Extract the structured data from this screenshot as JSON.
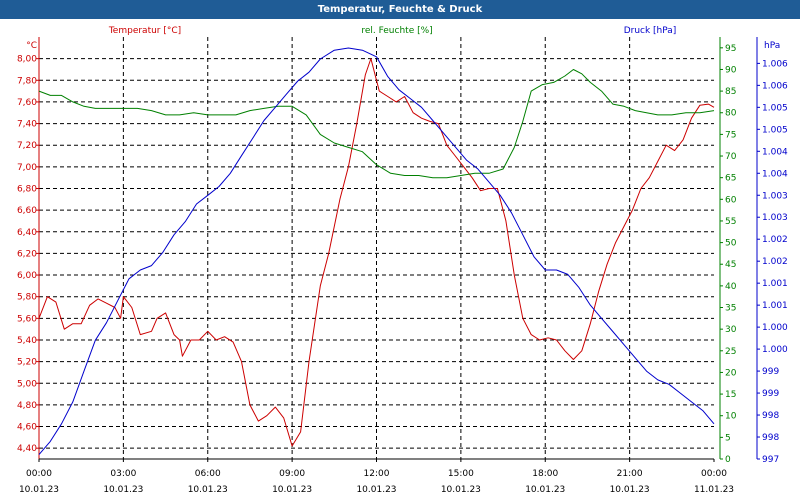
{
  "window": {
    "title": "Temperatur, Feuchte & Druck"
  },
  "colors": {
    "temperature": "#cc0000",
    "humidity": "#008000",
    "pressure": "#0000cc",
    "titlebar": "#1f5c96"
  },
  "chart_data": {
    "type": "line",
    "title": "Temperatur, Feuchte & Druck",
    "grid": true,
    "x": {
      "range": [
        0,
        24
      ],
      "ticks": [
        {
          "v": 0,
          "time": "00:00",
          "date": "10.01.23"
        },
        {
          "v": 3,
          "time": "03:00",
          "date": "10.01.23"
        },
        {
          "v": 6,
          "time": "06:00",
          "date": "10.01.23"
        },
        {
          "v": 9,
          "time": "09:00",
          "date": "10.01.23"
        },
        {
          "v": 12,
          "time": "12:00",
          "date": "10.01.23"
        },
        {
          "v": 15,
          "time": "15:00",
          "date": "10.01.23"
        },
        {
          "v": 18,
          "time": "18:00",
          "date": "10.01.23"
        },
        {
          "v": 21,
          "time": "21:00",
          "date": "10.01.23"
        },
        {
          "v": 24,
          "time": "00:00",
          "date": "11.01.23"
        }
      ]
    },
    "axes": {
      "temperature": {
        "unit": "°C",
        "legend": "Temperatur [°C]",
        "range": [
          4.3,
          8.2
        ],
        "ticks": [
          {
            "v": 4.4,
            "label": "4,40"
          },
          {
            "v": 4.6,
            "label": "4,60"
          },
          {
            "v": 4.8,
            "label": "4,80"
          },
          {
            "v": 5.0,
            "label": "5,00"
          },
          {
            "v": 5.2,
            "label": "5,20"
          },
          {
            "v": 5.4,
            "label": "5,40"
          },
          {
            "v": 5.6,
            "label": "5,60"
          },
          {
            "v": 5.8,
            "label": "5,80"
          },
          {
            "v": 6.0,
            "label": "6,00"
          },
          {
            "v": 6.2,
            "label": "6,20"
          },
          {
            "v": 6.4,
            "label": "6,40"
          },
          {
            "v": 6.6,
            "label": "6,60"
          },
          {
            "v": 6.8,
            "label": "6,80"
          },
          {
            "v": 7.0,
            "label": "7,00"
          },
          {
            "v": 7.2,
            "label": "7,20"
          },
          {
            "v": 7.4,
            "label": "7,40"
          },
          {
            "v": 7.6,
            "label": "7,60"
          },
          {
            "v": 7.8,
            "label": "7,80"
          },
          {
            "v": 8.0,
            "label": "8,00"
          }
        ]
      },
      "humidity": {
        "unit": "%",
        "legend": "rel. Feuchte [%]",
        "range": [
          0,
          97.5
        ],
        "ticks": [
          {
            "v": 0,
            "label": "0"
          },
          {
            "v": 5,
            "label": "5"
          },
          {
            "v": 10,
            "label": "10"
          },
          {
            "v": 15,
            "label": "15"
          },
          {
            "v": 20,
            "label": "20"
          },
          {
            "v": 25,
            "label": "25"
          },
          {
            "v": 30,
            "label": "30"
          },
          {
            "v": 35,
            "label": "35"
          },
          {
            "v": 40,
            "label": "40"
          },
          {
            "v": 45,
            "label": "45"
          },
          {
            "v": 50,
            "label": "50"
          },
          {
            "v": 55,
            "label": "55"
          },
          {
            "v": 60,
            "label": "60"
          },
          {
            "v": 65,
            "label": "65"
          },
          {
            "v": 70,
            "label": "70"
          },
          {
            "v": 75,
            "label": "75"
          },
          {
            "v": 80,
            "label": "80"
          },
          {
            "v": 85,
            "label": "85"
          },
          {
            "v": 90,
            "label": "90"
          },
          {
            "v": 95,
            "label": "95"
          }
        ]
      },
      "pressure": {
        "unit": "hPa",
        "legend": "Druck [hPa]",
        "range": [
          997.0,
          1006.6
        ],
        "ticks": [
          {
            "v": 997.0,
            "label": "997"
          },
          {
            "v": 997.5,
            "label": "998"
          },
          {
            "v": 998.0,
            "label": "998"
          },
          {
            "v": 998.5,
            "label": "999"
          },
          {
            "v": 999.0,
            "label": "999"
          },
          {
            "v": 999.5,
            "label": "1.000"
          },
          {
            "v": 1000.0,
            "label": "1.000"
          },
          {
            "v": 1000.5,
            "label": "1.001"
          },
          {
            "v": 1001.0,
            "label": "1.001"
          },
          {
            "v": 1001.5,
            "label": "1.002"
          },
          {
            "v": 1002.0,
            "label": "1.002"
          },
          {
            "v": 1002.5,
            "label": "1.003"
          },
          {
            "v": 1003.0,
            "label": "1.003"
          },
          {
            "v": 1003.5,
            "label": "1.004"
          },
          {
            "v": 1004.0,
            "label": "1.004"
          },
          {
            "v": 1004.5,
            "label": "1.005"
          },
          {
            "v": 1005.0,
            "label": "1.005"
          },
          {
            "v": 1005.5,
            "label": "1.006"
          },
          {
            "v": 1006.0,
            "label": "1.006"
          }
        ]
      }
    },
    "series": [
      {
        "name": "Temperatur [°C]",
        "axis": "temperature",
        "color": "#cc0000",
        "points": [
          [
            0.0,
            5.6
          ],
          [
            0.3,
            5.8
          ],
          [
            0.6,
            5.75
          ],
          [
            0.9,
            5.5
          ],
          [
            1.2,
            5.55
          ],
          [
            1.5,
            5.55
          ],
          [
            1.8,
            5.72
          ],
          [
            2.1,
            5.78
          ],
          [
            2.4,
            5.74
          ],
          [
            2.7,
            5.7
          ],
          [
            2.9,
            5.6
          ],
          [
            3.0,
            5.8
          ],
          [
            3.3,
            5.7
          ],
          [
            3.6,
            5.45
          ],
          [
            4.0,
            5.48
          ],
          [
            4.2,
            5.6
          ],
          [
            4.5,
            5.65
          ],
          [
            4.8,
            5.45
          ],
          [
            5.0,
            5.4
          ],
          [
            5.1,
            5.25
          ],
          [
            5.4,
            5.4
          ],
          [
            5.7,
            5.4
          ],
          [
            6.0,
            5.48
          ],
          [
            6.3,
            5.4
          ],
          [
            6.6,
            5.43
          ],
          [
            6.9,
            5.38
          ],
          [
            7.2,
            5.2
          ],
          [
            7.5,
            4.8
          ],
          [
            7.8,
            4.65
          ],
          [
            8.1,
            4.7
          ],
          [
            8.4,
            4.78
          ],
          [
            8.7,
            4.68
          ],
          [
            9.0,
            4.42
          ],
          [
            9.3,
            4.55
          ],
          [
            9.6,
            5.2
          ],
          [
            10.0,
            5.9
          ],
          [
            10.3,
            6.2
          ],
          [
            10.7,
            6.7
          ],
          [
            11.0,
            7.0
          ],
          [
            11.3,
            7.4
          ],
          [
            11.6,
            7.85
          ],
          [
            11.8,
            8.0
          ],
          [
            12.1,
            7.7
          ],
          [
            12.4,
            7.65
          ],
          [
            12.7,
            7.6
          ],
          [
            13.0,
            7.65
          ],
          [
            13.3,
            7.5
          ],
          [
            13.6,
            7.45
          ],
          [
            13.9,
            7.42
          ],
          [
            14.2,
            7.4
          ],
          [
            14.5,
            7.2
          ],
          [
            14.8,
            7.1
          ],
          [
            15.1,
            7.0
          ],
          [
            15.4,
            6.9
          ],
          [
            15.7,
            6.78
          ],
          [
            16.0,
            6.8
          ],
          [
            16.3,
            6.8
          ],
          [
            16.6,
            6.5
          ],
          [
            16.9,
            6.0
          ],
          [
            17.2,
            5.6
          ],
          [
            17.5,
            5.45
          ],
          [
            17.8,
            5.4
          ],
          [
            18.1,
            5.42
          ],
          [
            18.4,
            5.4
          ],
          [
            18.7,
            5.3
          ],
          [
            19.0,
            5.22
          ],
          [
            19.3,
            5.3
          ],
          [
            19.6,
            5.55
          ],
          [
            19.9,
            5.85
          ],
          [
            20.2,
            6.1
          ],
          [
            20.5,
            6.3
          ],
          [
            20.8,
            6.45
          ],
          [
            21.1,
            6.6
          ],
          [
            21.4,
            6.8
          ],
          [
            21.7,
            6.9
          ],
          [
            22.0,
            7.05
          ],
          [
            22.3,
            7.2
          ],
          [
            22.6,
            7.15
          ],
          [
            22.9,
            7.25
          ],
          [
            23.2,
            7.45
          ],
          [
            23.5,
            7.57
          ],
          [
            23.8,
            7.58
          ],
          [
            24.0,
            7.55
          ]
        ]
      },
      {
        "name": "rel. Feuchte [%]",
        "axis": "humidity",
        "color": "#008000",
        "points": [
          [
            0.0,
            85
          ],
          [
            0.4,
            84
          ],
          [
            0.8,
            84
          ],
          [
            1.2,
            82.5
          ],
          [
            1.6,
            81.5
          ],
          [
            2.0,
            81
          ],
          [
            2.5,
            81
          ],
          [
            3.0,
            81
          ],
          [
            3.5,
            81
          ],
          [
            4.0,
            80.5
          ],
          [
            4.5,
            79.5
          ],
          [
            5.0,
            79.5
          ],
          [
            5.5,
            80
          ],
          [
            6.0,
            79.5
          ],
          [
            6.5,
            79.5
          ],
          [
            7.0,
            79.5
          ],
          [
            7.5,
            80.5
          ],
          [
            8.0,
            81
          ],
          [
            8.5,
            81.5
          ],
          [
            9.0,
            81.5
          ],
          [
            9.5,
            79.5
          ],
          [
            10.0,
            75
          ],
          [
            10.5,
            73
          ],
          [
            11.0,
            72
          ],
          [
            11.5,
            71
          ],
          [
            12.0,
            68
          ],
          [
            12.5,
            66
          ],
          [
            13.0,
            65.5
          ],
          [
            13.5,
            65.5
          ],
          [
            14.0,
            65
          ],
          [
            14.5,
            65
          ],
          [
            15.0,
            65.5
          ],
          [
            15.5,
            66
          ],
          [
            16.0,
            66
          ],
          [
            16.5,
            67
          ],
          [
            16.9,
            72
          ],
          [
            17.2,
            78
          ],
          [
            17.5,
            85
          ],
          [
            17.9,
            86.5
          ],
          [
            18.3,
            87
          ],
          [
            18.7,
            88.5
          ],
          [
            19.0,
            90
          ],
          [
            19.3,
            89
          ],
          [
            19.6,
            87
          ],
          [
            20.0,
            85
          ],
          [
            20.4,
            82
          ],
          [
            20.8,
            81.5
          ],
          [
            21.2,
            80.5
          ],
          [
            21.6,
            80
          ],
          [
            22.0,
            79.5
          ],
          [
            22.5,
            79.5
          ],
          [
            23.0,
            80
          ],
          [
            23.5,
            80
          ],
          [
            24.0,
            80.5
          ]
        ]
      },
      {
        "name": "Druck [hPa]",
        "axis": "pressure",
        "color": "#0000cc",
        "points": [
          [
            0.0,
            997.1
          ],
          [
            0.4,
            997.4
          ],
          [
            0.8,
            997.8
          ],
          [
            1.2,
            998.3
          ],
          [
            1.6,
            999.0
          ],
          [
            2.0,
            999.7
          ],
          [
            2.4,
            1000.1
          ],
          [
            2.8,
            1000.6
          ],
          [
            3.2,
            1001.1
          ],
          [
            3.6,
            1001.3
          ],
          [
            4.0,
            1001.4
          ],
          [
            4.4,
            1001.7
          ],
          [
            4.8,
            1002.1
          ],
          [
            5.2,
            1002.4
          ],
          [
            5.6,
            1002.8
          ],
          [
            6.0,
            1003.0
          ],
          [
            6.4,
            1003.2
          ],
          [
            6.8,
            1003.5
          ],
          [
            7.2,
            1003.9
          ],
          [
            7.6,
            1004.3
          ],
          [
            8.0,
            1004.7
          ],
          [
            8.4,
            1005.0
          ],
          [
            8.8,
            1005.3
          ],
          [
            9.2,
            1005.6
          ],
          [
            9.6,
            1005.8
          ],
          [
            10.0,
            1006.1
          ],
          [
            10.5,
            1006.3
          ],
          [
            11.0,
            1006.35
          ],
          [
            11.5,
            1006.3
          ],
          [
            12.0,
            1006.15
          ],
          [
            12.4,
            1005.7
          ],
          [
            12.8,
            1005.4
          ],
          [
            13.2,
            1005.2
          ],
          [
            13.6,
            1005.0
          ],
          [
            14.0,
            1004.7
          ],
          [
            14.4,
            1004.4
          ],
          [
            14.8,
            1004.1
          ],
          [
            15.2,
            1003.8
          ],
          [
            15.6,
            1003.6
          ],
          [
            16.0,
            1003.3
          ],
          [
            16.4,
            1003.0
          ],
          [
            16.8,
            1002.6
          ],
          [
            17.2,
            1002.1
          ],
          [
            17.6,
            1001.6
          ],
          [
            18.0,
            1001.3
          ],
          [
            18.4,
            1001.3
          ],
          [
            18.8,
            1001.2
          ],
          [
            19.2,
            1000.9
          ],
          [
            19.6,
            1000.5
          ],
          [
            20.0,
            1000.2
          ],
          [
            20.4,
            999.9
          ],
          [
            20.8,
            999.6
          ],
          [
            21.2,
            999.3
          ],
          [
            21.6,
            999.0
          ],
          [
            22.0,
            998.8
          ],
          [
            22.4,
            998.7
          ],
          [
            22.8,
            998.5
          ],
          [
            23.2,
            998.3
          ],
          [
            23.6,
            998.1
          ],
          [
            24.0,
            997.8
          ]
        ]
      }
    ]
  }
}
